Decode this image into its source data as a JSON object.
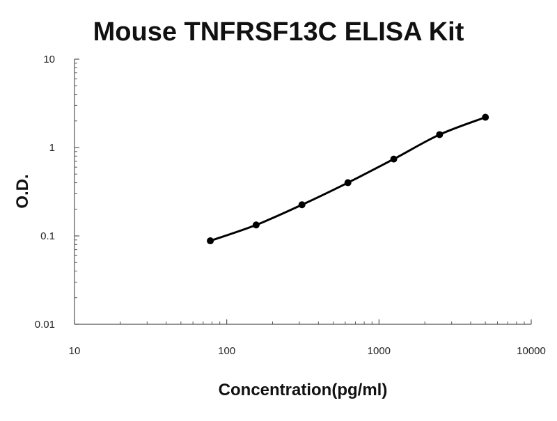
{
  "chart_data": {
    "type": "line",
    "title": "Mouse TNFRSF13C ELISA Kit",
    "xlabel": "Concentration(pg/ml)",
    "ylabel": "O.D.",
    "x_scale": "log",
    "y_scale": "log",
    "xlim": [
      10,
      10000
    ],
    "ylim": [
      0.01,
      10
    ],
    "x_ticks": [
      "10",
      "100",
      "1000",
      "10000"
    ],
    "y_ticks": [
      "0.01",
      "0.1",
      "1",
      "10"
    ],
    "grid": false,
    "legend": "none",
    "series": [
      {
        "x": [
          78,
          156,
          312,
          625,
          1250,
          2500,
          5000
        ],
        "y": [
          0.088,
          0.133,
          0.225,
          0.4,
          0.74,
          1.4,
          2.2
        ]
      }
    ],
    "colors": {
      "line": "#000000",
      "marker": "#000000",
      "axis": "#555555"
    }
  }
}
